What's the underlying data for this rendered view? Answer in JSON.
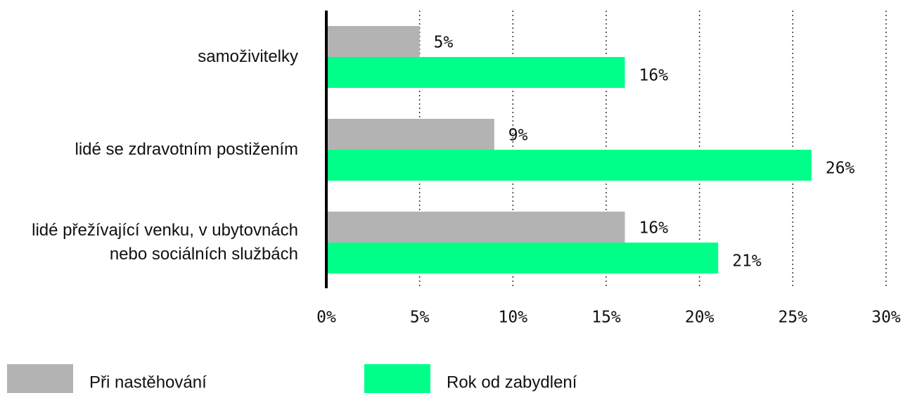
{
  "chart_data": {
    "type": "bar",
    "orientation": "horizontal",
    "categories": [
      "samoživitelky",
      "lidé se zdravotním postižením",
      "lidé přežívající venku, v ubytovnách nebo sociálních službách"
    ],
    "series": [
      {
        "name": "Při nastěhování",
        "color": "#b3b3b3",
        "values": [
          5,
          9,
          16
        ],
        "value_labels": [
          "5%",
          "9%",
          "16%"
        ]
      },
      {
        "name": "Rok od zabydlení",
        "color": "#00ff88",
        "values": [
          16,
          26,
          21
        ],
        "value_labels": [
          "16%",
          "26%",
          "21%"
        ]
      }
    ],
    "xlim": [
      0,
      30
    ],
    "xticks": [
      {
        "value": 0,
        "label": "0%"
      },
      {
        "value": 5,
        "label": "5%"
      },
      {
        "value": 10,
        "label": "10%"
      },
      {
        "value": 15,
        "label": "15%"
      },
      {
        "value": 20,
        "label": "20%"
      },
      {
        "value": 25,
        "label": "25%"
      },
      {
        "value": 30,
        "label": "30%"
      }
    ],
    "grid": true
  }
}
